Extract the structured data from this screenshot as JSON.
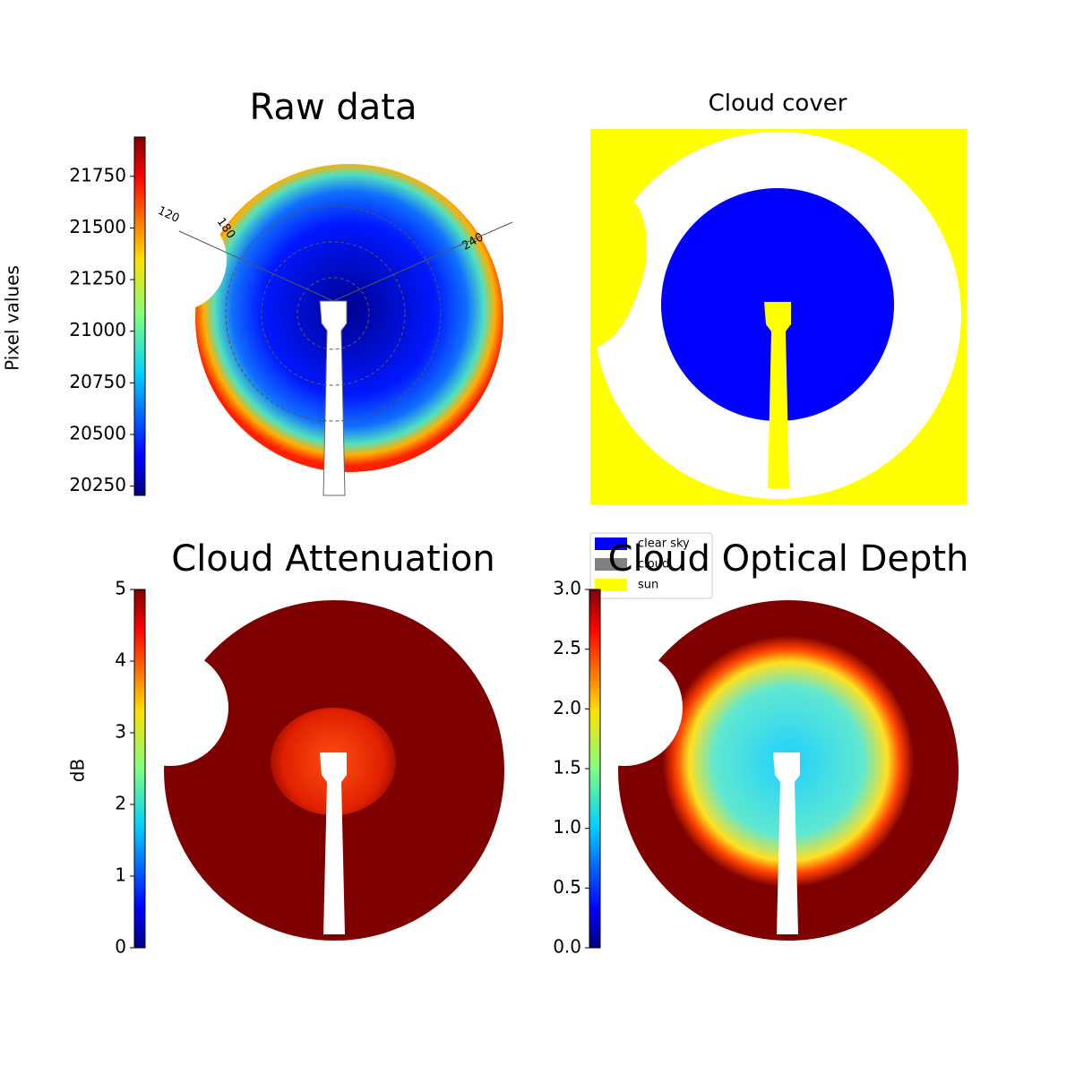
{
  "chart_data": [
    {
      "type": "image",
      "title": "Raw data",
      "colorbar_label": "Pixel values",
      "colormap": "jet",
      "clim": [
        20205,
        21940
      ],
      "cticks": [
        20250,
        20500,
        20750,
        21000,
        21250,
        21500,
        21750
      ],
      "annotations": [
        "120",
        "180",
        "240"
      ]
    },
    {
      "type": "image",
      "title": "Cloud cover",
      "legend": [
        {
          "name": "clear sky",
          "color": "#0000ff"
        },
        {
          "name": "cloud",
          "color": "#808080"
        },
        {
          "name": "sun",
          "color": "#ffff00"
        }
      ]
    },
    {
      "type": "image",
      "title": "Cloud Attenuation",
      "colorbar_label": "dB",
      "colormap": "jet",
      "clim": [
        0,
        5
      ],
      "cticks": [
        0,
        1,
        2,
        3,
        4,
        5
      ]
    },
    {
      "type": "image",
      "title": "Cloud Optical Depth",
      "colormap": "jet",
      "clim": [
        0,
        3
      ],
      "cticks": [
        {
          "value": 0,
          "label": "0.0"
        },
        {
          "value": 0.5,
          "label": "0.5"
        },
        {
          "value": 1,
          "label": "1.0"
        },
        {
          "value": 1.5,
          "label": "1.5"
        },
        {
          "value": 2,
          "label": "2.0"
        },
        {
          "value": 2.5,
          "label": "2.5"
        },
        {
          "value": 3,
          "label": "3.0"
        }
      ]
    }
  ]
}
